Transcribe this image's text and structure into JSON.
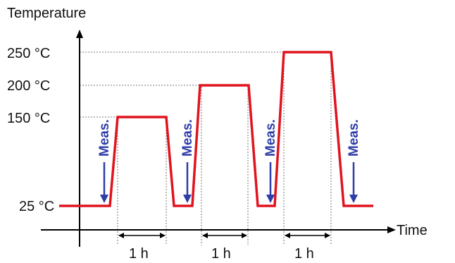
{
  "chart_data": {
    "type": "line",
    "ylabel": "Temperature",
    "xlabel": "Time",
    "y_ticks": [
      "250 °C",
      "200 °C",
      "150 °C",
      "25 °C"
    ],
    "series": [
      {
        "color": "#e0141e",
        "points": [
          [
            0,
            "25 °C"
          ],
          [
            1,
            "25 °C"
          ],
          [
            2,
            "150 °C"
          ],
          [
            3,
            "150 °C"
          ],
          [
            4,
            "25 °C"
          ],
          [
            5,
            "25 °C"
          ],
          [
            6,
            "200 °C"
          ],
          [
            7,
            "200 °C"
          ],
          [
            8,
            "25 °C"
          ],
          [
            9,
            "25 °C"
          ],
          [
            10,
            "250 °C"
          ],
          [
            11,
            "250 °C"
          ],
          [
            12,
            "25 °C"
          ],
          [
            13,
            "25 °C"
          ]
        ]
      }
    ],
    "intervals": [
      "1 h",
      "1 h",
      "1 h"
    ],
    "measurements": [
      "Meas.",
      "Meas.",
      "Meas.",
      "Meas."
    ],
    "colors": {
      "curve": "#e0141e",
      "arrow": "#2e3da8",
      "axis": "#000000",
      "guide": "#777777"
    }
  }
}
